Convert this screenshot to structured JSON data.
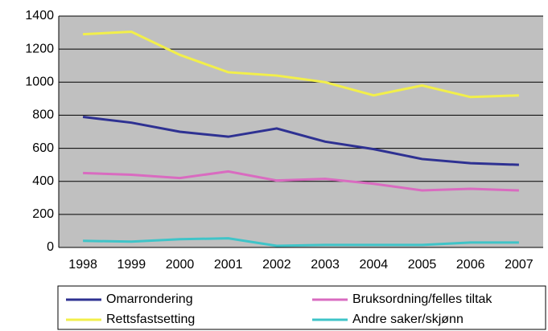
{
  "chart_data": {
    "type": "line",
    "categories": [
      "1998",
      "1999",
      "2000",
      "2001",
      "2002",
      "2003",
      "2004",
      "2005",
      "2006",
      "2007"
    ],
    "series": [
      {
        "name": "Omarrondering",
        "color": "#2e3192",
        "values": [
          790,
          755,
          700,
          670,
          720,
          640,
          595,
          535,
          510,
          500
        ]
      },
      {
        "name": "Bruksordning/felles tiltak",
        "color": "#d96bc0",
        "values": [
          450,
          440,
          420,
          460,
          405,
          415,
          385,
          345,
          355,
          345
        ]
      },
      {
        "name": "Rettsfastsetting",
        "color": "#f2ef4a",
        "values": [
          1290,
          1305,
          1165,
          1060,
          1040,
          1000,
          920,
          980,
          910,
          920
        ]
      },
      {
        "name": "Andre saker/skjønn",
        "color": "#3fc4c8",
        "values": [
          40,
          35,
          50,
          55,
          10,
          15,
          15,
          15,
          30,
          30
        ]
      }
    ],
    "ylim": [
      0,
      1400
    ],
    "yticks": [
      0,
      200,
      400,
      600,
      800,
      1000,
      1200,
      1400
    ],
    "grid": true,
    "legend": "bottom"
  }
}
